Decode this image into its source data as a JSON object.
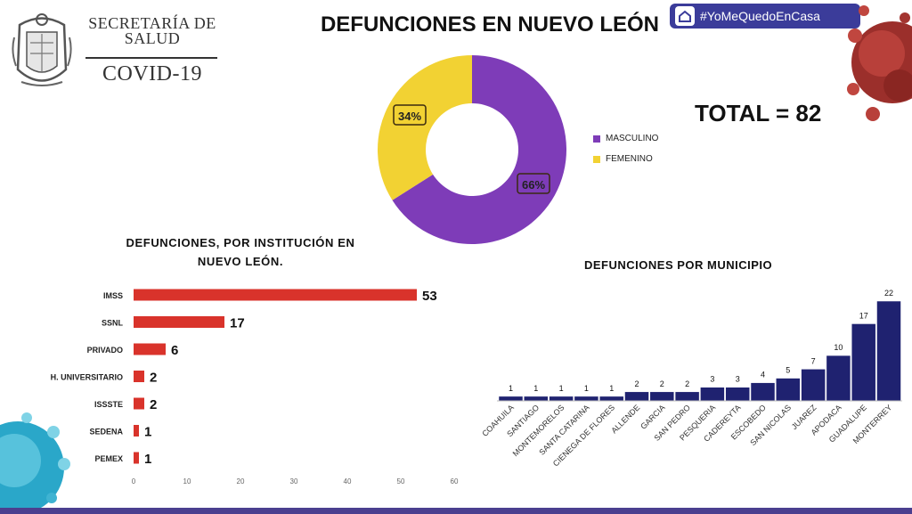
{
  "header": {
    "org_name": "SECRETARÍA DE SALUD",
    "org_sub": "COVID-19",
    "title": "DEFUNCIONES EN NUEVO LEÓN",
    "hashtag": "#YoMeQuedoEnCasa"
  },
  "total": {
    "label": "TOTAL = 82"
  },
  "colors": {
    "masculino": "#7e3cb8",
    "femenino": "#f2d233",
    "bar_red": "#d9332b",
    "bar_navy": "#1f2270",
    "bottom_bar": "#4b3f8f"
  },
  "chart_data": [
    {
      "type": "pie",
      "title": "",
      "donut": true,
      "slices": [
        {
          "name": "MASCULINO",
          "value": 66,
          "label": "66%",
          "color": "#7e3cb8"
        },
        {
          "name": "FEMENINO",
          "value": 34,
          "label": "34%",
          "color": "#f2d233"
        }
      ],
      "legend_placement": "right"
    },
    {
      "type": "bar",
      "orientation": "horizontal",
      "title": "DEFUNCIONES, POR INSTITUCIÓN EN NUEVO LEÓN.",
      "categories": [
        "IMSS",
        "SSNL",
        "PRIVADO",
        "H. UNIVERSITARIO",
        "ISSSTE",
        "SEDENA",
        "PEMEX"
      ],
      "values": [
        53,
        17,
        6,
        2,
        2,
        1,
        1
      ],
      "xlim": [
        0,
        60
      ],
      "xticks": [
        0,
        10,
        20,
        30,
        40,
        50,
        60
      ],
      "grid": false,
      "color": "#d9332b"
    },
    {
      "type": "bar",
      "orientation": "vertical",
      "title": "DEFUNCIONES POR MUNICIPIO",
      "categories": [
        "COAHUILA",
        "SANTIAGO",
        "MONTEMORELOS",
        "SANTA CATARINA",
        "CIENEGA DE FLORES",
        "ALLENDE",
        "GARCIA",
        "SAN PEDRO",
        "PESQUERIA",
        "CADEREYTA",
        "ESCOBEDO",
        "SAN NICOLAS",
        "JUAREZ",
        "APODACA",
        "GUADALUPE",
        "MONTERREY"
      ],
      "values": [
        1,
        1,
        1,
        1,
        1,
        2,
        2,
        2,
        3,
        3,
        4,
        5,
        7,
        10,
        17,
        22
      ],
      "ylim": [
        0,
        22
      ],
      "grid": false,
      "color": "#1f2270"
    }
  ]
}
